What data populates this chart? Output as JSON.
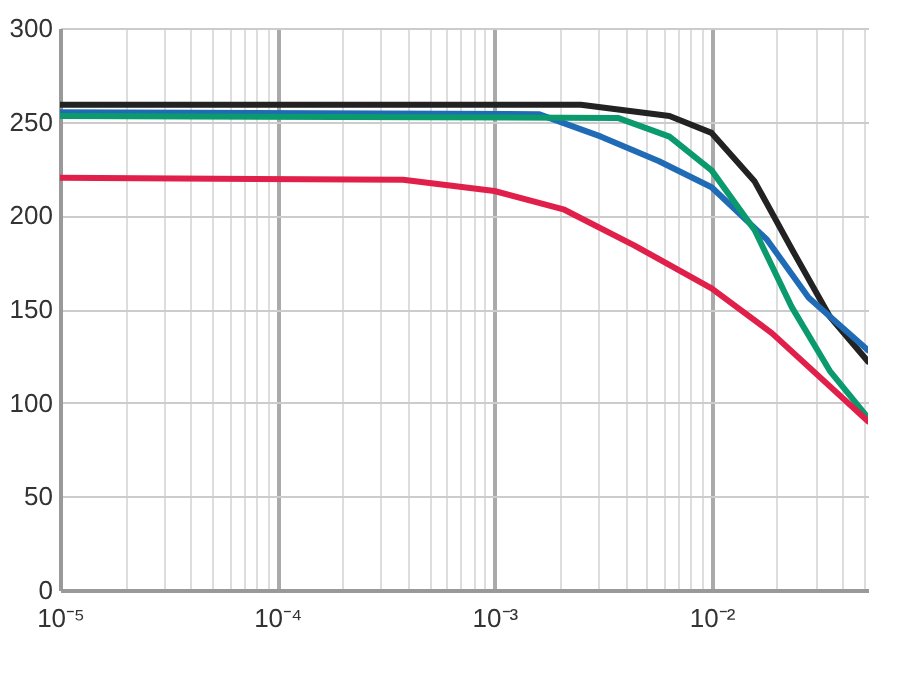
{
  "chart_data": {
    "type": "line",
    "log": "x",
    "grid": true,
    "marker": "none",
    "line_style": "solid",
    "xlim": [
      1e-05,
      0.0525
    ],
    "ylim": [
      0,
      300
    ],
    "yticks": [
      0,
      50,
      100,
      150,
      200,
      250,
      300
    ],
    "xticks": [
      {
        "value": 1e-05,
        "label": "10⁻⁵"
      },
      {
        "value": 2e-05,
        "label": null
      },
      {
        "value": 3e-05,
        "label": null
      },
      {
        "value": 4e-05,
        "label": null
      },
      {
        "value": 5e-05,
        "label": null
      },
      {
        "value": 6e-05,
        "label": null
      },
      {
        "value": 7e-05,
        "label": null
      },
      {
        "value": 8e-05,
        "label": null
      },
      {
        "value": 9e-05,
        "label": null
      },
      {
        "value": 0.0001,
        "label": "10⁻⁴"
      },
      {
        "value": 0.0002,
        "label": null
      },
      {
        "value": 0.0003,
        "label": null
      },
      {
        "value": 0.0004,
        "label": null
      },
      {
        "value": 0.0005,
        "label": null
      },
      {
        "value": 0.0006,
        "label": null
      },
      {
        "value": 0.0007,
        "label": null
      },
      {
        "value": 0.0008,
        "label": null
      },
      {
        "value": 0.0009,
        "label": null
      },
      {
        "value": 0.001,
        "label": "10⁻³"
      },
      {
        "value": 0.002,
        "label": null
      },
      {
        "value": 0.003,
        "label": null
      },
      {
        "value": 0.004,
        "label": null
      },
      {
        "value": 0.005,
        "label": null
      },
      {
        "value": 0.006,
        "label": null
      },
      {
        "value": 0.007,
        "label": null
      },
      {
        "value": 0.008,
        "label": null
      },
      {
        "value": 0.009,
        "label": null
      },
      {
        "value": 0.01,
        "label": "10⁻²"
      },
      {
        "value": 0.02,
        "label": null
      },
      {
        "value": 0.03,
        "label": null
      },
      {
        "value": 0.04,
        "label": null
      },
      {
        "value": 0.05,
        "label": null
      }
    ],
    "series": [
      {
        "color": "#222222",
        "x": [
          1e-05,
          0.001,
          0.0025,
          0.0064,
          0.01,
          0.0158,
          0.0234,
          0.035,
          0.0525
        ],
        "values": [
          259,
          259,
          259,
          253,
          244,
          218,
          182,
          146,
          122
        ]
      },
      {
        "color": "#1f6bb5",
        "x": [
          1e-05,
          0.0016,
          0.0031,
          0.0057,
          0.01,
          0.018,
          0.028,
          0.0525
        ],
        "values": [
          255,
          254,
          242,
          229,
          215,
          187,
          156,
          128
        ]
      },
      {
        "color": "#0a9a6e",
        "x": [
          1e-05,
          0.0037,
          0.0064,
          0.01,
          0.0158,
          0.0234,
          0.035,
          0.0525
        ],
        "values": [
          253,
          252,
          242,
          224,
          192,
          151,
          117,
          92
        ]
      },
      {
        "color": "#e0204a",
        "x": [
          1e-05,
          0.00038,
          0.001,
          0.0021,
          0.0044,
          0.01,
          0.019,
          0.0525
        ],
        "values": [
          220,
          219,
          213,
          203,
          184,
          161,
          137,
          90
        ]
      }
    ]
  }
}
